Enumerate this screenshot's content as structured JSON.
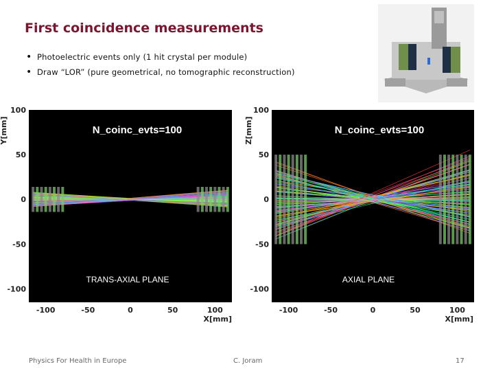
{
  "slide": {
    "title": "First coincidence measurements",
    "bullets": [
      "Photoelectric events only (1 hit crystal per module)",
      "Draw “LOR”  (pure geometrical, no tomographic reconstruction)"
    ],
    "bullet_symbol": "•",
    "footer_left": "Physics For Health in Europe",
    "footer_center": "C. Joram",
    "page_number": "17",
    "colors": {
      "title": "#7b1631",
      "plot_bg": "#000000"
    }
  },
  "chart_data": [
    {
      "type": "line",
      "annotation": "N_coinc_evts=100",
      "plane_label": "TRANS-AXIAL PLANE",
      "xlabel": "X[mm]",
      "ylabel": "Y[mm]",
      "xlim": [
        -120,
        120
      ],
      "ylim": [
        -115,
        100
      ],
      "xticks": [
        -100,
        -50,
        0,
        50,
        100
      ],
      "yticks": [
        -100,
        -50,
        0,
        50,
        100
      ],
      "x": [
        -115,
        115
      ],
      "lor_count": 100,
      "lor_y_range": [
        -8,
        8
      ],
      "detector_x_range_left": [
        -115,
        -80
      ],
      "detector_x_range_right": [
        80,
        115
      ],
      "detector_height": [
        -14,
        14
      ]
    },
    {
      "type": "line",
      "annotation": "N_coinc_evts=100",
      "plane_label": "AXIAL PLANE",
      "xlabel": "X[mm]",
      "ylabel": "Z[mm]",
      "xlim": [
        -120,
        120
      ],
      "ylim": [
        -115,
        100
      ],
      "xticks": [
        -100,
        -50,
        0,
        50,
        100
      ],
      "yticks": [
        -100,
        -50,
        0,
        50,
        100
      ],
      "x": [
        -115,
        115
      ],
      "lor_count": 100,
      "lor_y_range": [
        -45,
        45
      ],
      "detector_x_range_left": [
        -115,
        -80
      ],
      "detector_x_range_right": [
        80,
        115
      ],
      "detector_height": [
        -50,
        50
      ]
    }
  ]
}
